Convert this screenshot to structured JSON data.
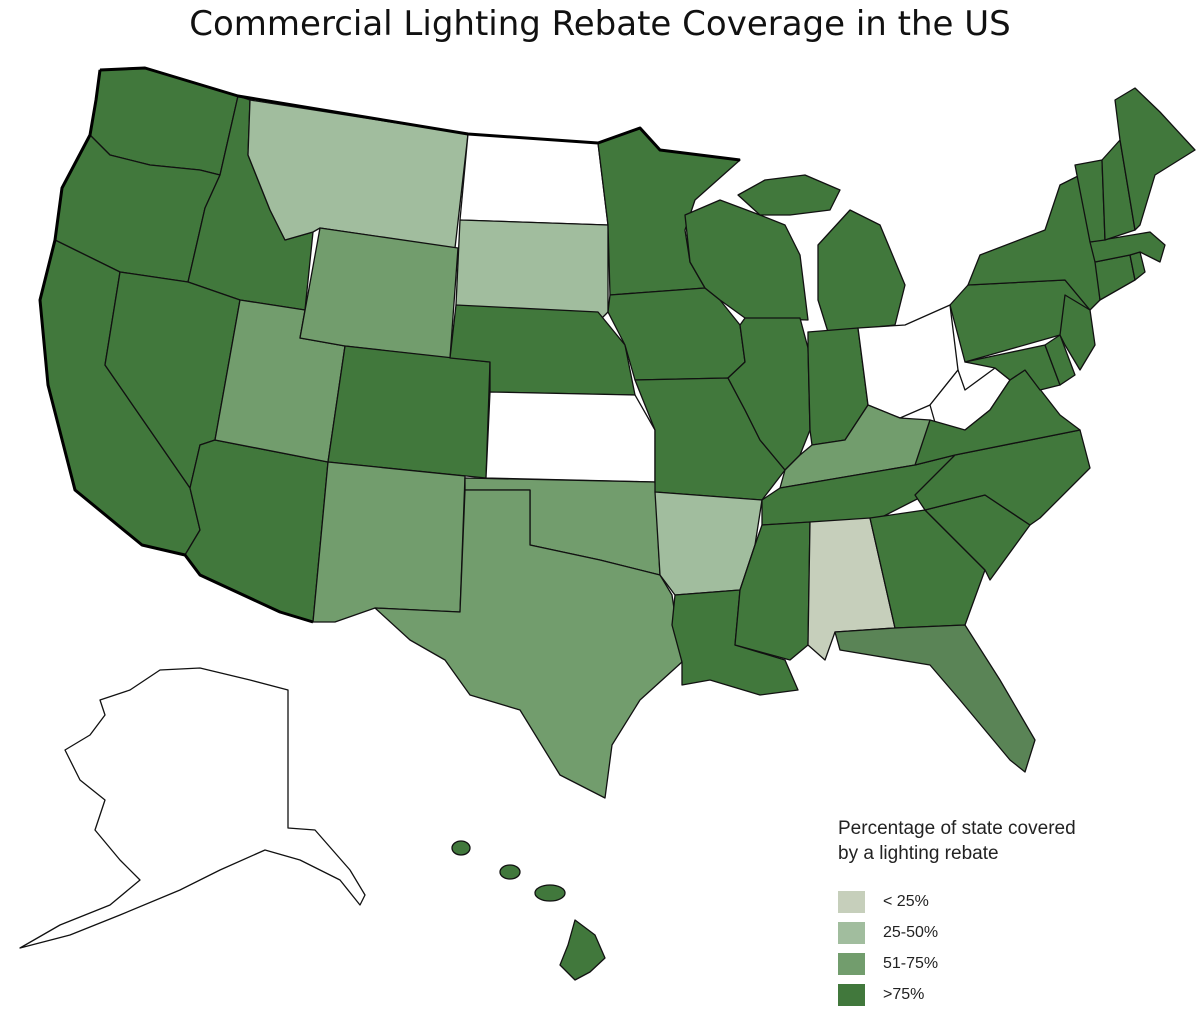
{
  "title": "Commercial Lighting Rebate Coverage in the US",
  "legend": {
    "title_line1": "Percentage of state covered",
    "title_line2": "by a lighting rebate",
    "items": [
      {
        "label": "< 25%",
        "color": "#c6cfbb"
      },
      {
        "label": "25-50%",
        "color": "#a1bd9e"
      },
      {
        "label": "51-75%",
        "color": "#729d6d"
      },
      {
        "label": ">75%",
        "color": "#41783c"
      }
    ]
  },
  "colors": {
    "none": "#ffffff",
    "lt25": "#c6cfbb",
    "c25_50": "#a1bd9e",
    "c51_75": "#729d6d",
    "florida": "#5a8456",
    "gt75": "#41783c"
  },
  "states": [
    {
      "name": "Washington",
      "category": "gt75"
    },
    {
      "name": "Oregon",
      "category": "gt75"
    },
    {
      "name": "California",
      "category": "gt75"
    },
    {
      "name": "Idaho",
      "category": "gt75"
    },
    {
      "name": "Nevada",
      "category": "gt75"
    },
    {
      "name": "Arizona",
      "category": "gt75"
    },
    {
      "name": "Utah",
      "category": "c51_75"
    },
    {
      "name": "Montana",
      "category": "c25_50"
    },
    {
      "name": "Wyoming",
      "category": "c51_75"
    },
    {
      "name": "Colorado",
      "category": "gt75"
    },
    {
      "name": "New Mexico",
      "category": "c51_75"
    },
    {
      "name": "North Dakota",
      "category": "none"
    },
    {
      "name": "South Dakota",
      "category": "c25_50"
    },
    {
      "name": "Nebraska",
      "category": "gt75"
    },
    {
      "name": "Kansas",
      "category": "none"
    },
    {
      "name": "Oklahoma",
      "category": "c51_75"
    },
    {
      "name": "Texas",
      "category": "c51_75"
    },
    {
      "name": "Minnesota",
      "category": "gt75"
    },
    {
      "name": "Iowa",
      "category": "gt75"
    },
    {
      "name": "Missouri",
      "category": "gt75"
    },
    {
      "name": "Arkansas",
      "category": "c25_50"
    },
    {
      "name": "Louisiana",
      "category": "gt75"
    },
    {
      "name": "Wisconsin",
      "category": "gt75"
    },
    {
      "name": "Illinois",
      "category": "gt75"
    },
    {
      "name": "Michigan",
      "category": "gt75"
    },
    {
      "name": "Indiana",
      "category": "gt75"
    },
    {
      "name": "Ohio",
      "category": "none"
    },
    {
      "name": "Kentucky",
      "category": "c51_75"
    },
    {
      "name": "Tennessee",
      "category": "gt75"
    },
    {
      "name": "Mississippi",
      "category": "gt75"
    },
    {
      "name": "Alabama",
      "category": "lt25"
    },
    {
      "name": "Georgia",
      "category": "gt75"
    },
    {
      "name": "Florida",
      "category": "florida"
    },
    {
      "name": "South Carolina",
      "category": "gt75"
    },
    {
      "name": "North Carolina",
      "category": "gt75"
    },
    {
      "name": "Virginia",
      "category": "gt75"
    },
    {
      "name": "West Virginia",
      "category": "none"
    },
    {
      "name": "Pennsylvania",
      "category": "gt75"
    },
    {
      "name": "New York",
      "category": "gt75"
    },
    {
      "name": "Maryland",
      "category": "gt75"
    },
    {
      "name": "Delaware",
      "category": "gt75"
    },
    {
      "name": "New Jersey",
      "category": "gt75"
    },
    {
      "name": "Connecticut",
      "category": "gt75"
    },
    {
      "name": "Rhode Island",
      "category": "gt75"
    },
    {
      "name": "Massachusetts",
      "category": "gt75"
    },
    {
      "name": "Vermont",
      "category": "gt75"
    },
    {
      "name": "New Hampshire",
      "category": "gt75"
    },
    {
      "name": "Maine",
      "category": "gt75"
    },
    {
      "name": "Alaska",
      "category": "none"
    },
    {
      "name": "Hawaii",
      "category": "gt75"
    }
  ]
}
